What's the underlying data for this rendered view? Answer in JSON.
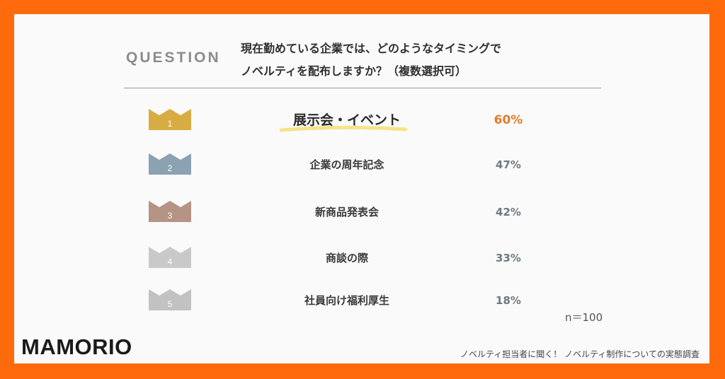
{
  "question": {
    "label": "QUESTION",
    "line1": "現在勤めている企業では、どのようなタイミングで",
    "line2": "ノベルティを配布しますか？（複数選択可）"
  },
  "colors": {
    "border": "#ff6a0d",
    "rank1": "#d7ad43",
    "rank2": "#8aa2b2",
    "rank3": "#b59385",
    "rank4": "#c9c9c9",
    "rank5": "#c2c2c2",
    "top_value": "#e27b2e",
    "highlight": "#f5e38a"
  },
  "chart_data": {
    "type": "table",
    "ranks": [
      "1",
      "2",
      "3",
      "4",
      "5"
    ],
    "categories": [
      "展示会・イベント",
      "企業の周年記念",
      "新商品発表会",
      "商談の際",
      "社員向け福利厚生"
    ],
    "values": [
      60,
      47,
      42,
      33,
      18
    ],
    "value_labels": [
      "60%",
      "47%",
      "42%",
      "33%",
      "18%"
    ],
    "sample_size": "n＝100"
  },
  "brand": {
    "logo": "MAMORIO"
  },
  "source": "ノベルティ担当者に聞く！ ノベルティ制作についての実態調査"
}
